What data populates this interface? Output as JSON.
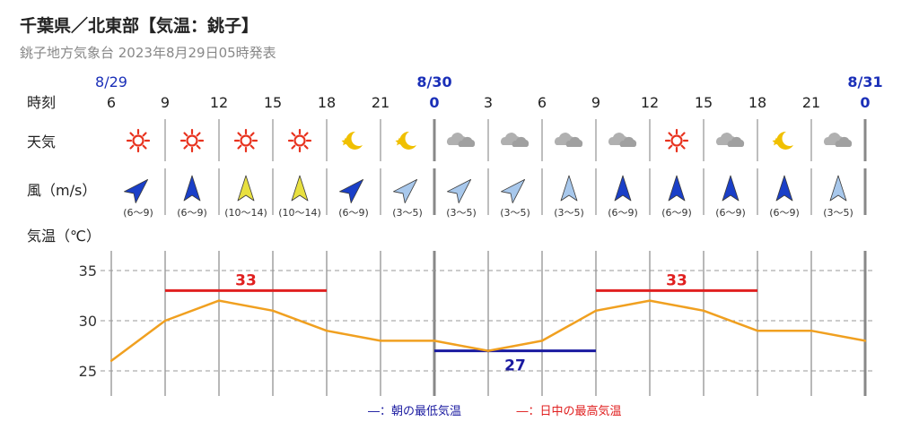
{
  "header": {
    "title": "千葉県／北東部【気温：銚子】",
    "subtitle": "銚子地方気象台 2023年8月29日05時発表"
  },
  "row_labels": {
    "time": "時刻",
    "weather": "天気",
    "wind": "風（m/s）",
    "temp": "気温（℃）"
  },
  "dates": [
    {
      "label": "8/29",
      "hour_index": 0
    },
    {
      "label": "8/30",
      "hour_index": 6
    },
    {
      "label": "8/31",
      "hour_index": 14
    }
  ],
  "hours": [
    "6",
    "9",
    "12",
    "15",
    "18",
    "21",
    "0",
    "3",
    "6",
    "9",
    "12",
    "15",
    "18",
    "21",
    "0"
  ],
  "weather_icons": [
    "sun-icon",
    "sun-icon",
    "sun-icon",
    "sun-icon",
    "moon-star-icon",
    "moon-star-icon",
    "cloud-icon",
    "cloud-icon",
    "cloud-icon",
    "cloud-icon",
    "sun-icon",
    "cloud-icon",
    "moon-star-icon",
    "cloud-icon"
  ],
  "wind": [
    {
      "dir": "NE",
      "range": "(6～9)",
      "level": "6-9"
    },
    {
      "dir": "N",
      "range": "(6～9)",
      "level": "6-9"
    },
    {
      "dir": "N",
      "range": "(10～14)",
      "level": "10-14"
    },
    {
      "dir": "N",
      "range": "(10～14)",
      "level": "10-14"
    },
    {
      "dir": "NE",
      "range": "(6～9)",
      "level": "6-9"
    },
    {
      "dir": "NE",
      "range": "(3～5)",
      "level": "3-5"
    },
    {
      "dir": "NE",
      "range": "(3～5)",
      "level": "3-5"
    },
    {
      "dir": "NE",
      "range": "(3～5)",
      "level": "3-5"
    },
    {
      "dir": "N",
      "range": "(3～5)",
      "level": "3-5"
    },
    {
      "dir": "N",
      "range": "(6～9)",
      "level": "6-9"
    },
    {
      "dir": "N",
      "range": "(6～9)",
      "level": "6-9"
    },
    {
      "dir": "N",
      "range": "(6～9)",
      "level": "6-9"
    },
    {
      "dir": "N",
      "range": "(6～9)",
      "level": "6-9"
    },
    {
      "dir": "N",
      "range": "(3～5)",
      "level": "3-5"
    }
  ],
  "colors": {
    "line": "#f0a020",
    "max": "#e02020",
    "min": "#1a1aa0",
    "date": "#1a2fb8",
    "grid": "#999999",
    "day_divider": "#888888",
    "wind_6_9": "#1a3fc8",
    "wind_10_14": "#e8e040",
    "wind_3_5": "#a8c8ec",
    "sun": "#e8321e",
    "moon": "#f0c000",
    "cloud": "#b0b0b0"
  },
  "legend": {
    "min_label": "―：朝の最低気温",
    "max_label": "―：日中の最高気温"
  },
  "chart_data": {
    "type": "line",
    "x": [
      "8/29 6",
      "8/29 9",
      "8/29 12",
      "8/29 15",
      "8/29 18",
      "8/29 21",
      "8/30 0",
      "8/30 3",
      "8/30 6",
      "8/30 9",
      "8/30 12",
      "8/30 15",
      "8/30 18",
      "8/30 21",
      "8/31 0"
    ],
    "series": [
      {
        "values": [
          26,
          30,
          32,
          31,
          29,
          28,
          28,
          27,
          28,
          31,
          32,
          31,
          29,
          29,
          28
        ]
      }
    ],
    "yticks": [
      25,
      30,
      35
    ],
    "ylim": [
      23.5,
      37
    ],
    "grid": true,
    "max_temps": [
      {
        "value": 33,
        "label": "33",
        "from": "8/29 9",
        "to": "8/29 18"
      },
      {
        "value": 33,
        "label": "33",
        "from": "8/30 9",
        "to": "8/30 18"
      }
    ],
    "min_temps": [
      {
        "value": 27,
        "label": "27",
        "from": "8/30 0",
        "to": "8/30 9"
      }
    ]
  }
}
